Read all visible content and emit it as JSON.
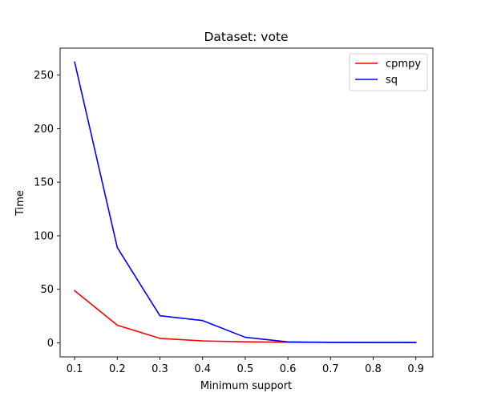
{
  "chart_data": {
    "type": "line",
    "title": "Dataset: vote",
    "xlabel": "Minimum support",
    "ylabel": "Time",
    "x": [
      0.1,
      0.2,
      0.3,
      0.4,
      0.5,
      0.6,
      0.7,
      0.8,
      0.9
    ],
    "xticks": [
      "0.1",
      "0.2",
      "0.3",
      "0.4",
      "0.5",
      "0.6",
      "0.7",
      "0.8",
      "0.9"
    ],
    "yticks": [
      "0",
      "50",
      "100",
      "150",
      "200",
      "250"
    ],
    "xlim": [
      0.066,
      0.94
    ],
    "ylim": [
      -13.1,
      275.2
    ],
    "grid": false,
    "legend_position": "top-right",
    "series": [
      {
        "name": "cpmpy",
        "color": "#ff0000",
        "values": [
          48.7,
          16.5,
          4.2,
          1.8,
          1.0,
          0.6,
          0.4,
          0.3,
          0.3
        ]
      },
      {
        "name": "sq",
        "color": "#0000ff",
        "values": [
          262.2,
          89.0,
          25.3,
          20.8,
          5.2,
          0.9,
          0.5,
          0.4,
          0.4
        ]
      }
    ]
  }
}
